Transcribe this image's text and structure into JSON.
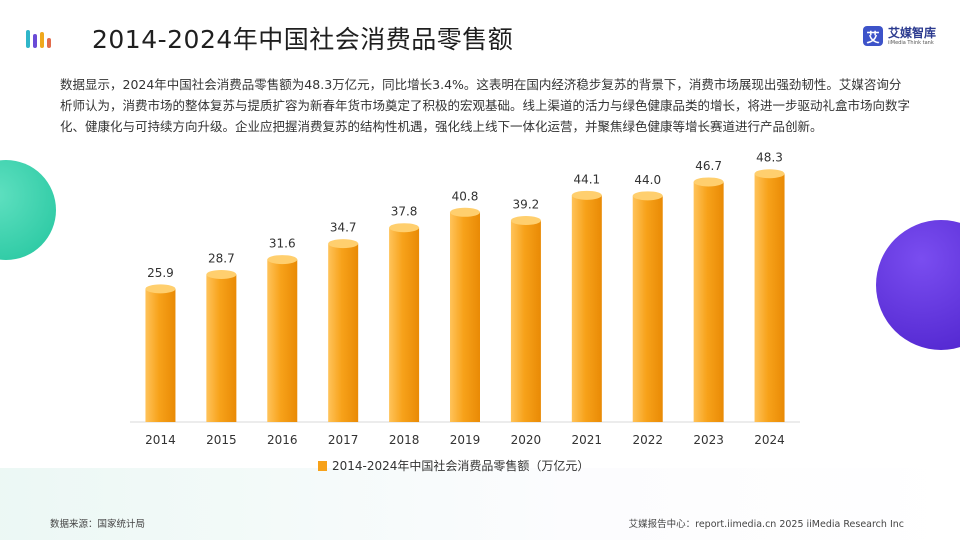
{
  "header": {
    "title": "2014-2024年中国社会消费品零售额",
    "brand_mark": "艾",
    "brand_name": "艾媒智库",
    "brand_sub": "iiMedia Think tank"
  },
  "description": "数据显示，2024年中国社会消费品零售额为48.3万亿元，同比增长3.4%。这表明在国内经济稳步复苏的背景下，消费市场展现出强劲韧性。艾媒咨询分析师认为，消费市场的整体复苏与提质扩容为新春年货市场奠定了积极的宏观基础。线上渠道的活力与绿色健康品类的增长，将进一步驱动礼盒市场向数字化、健康化与可持续方向升级。企业应把握消费复苏的结构性机遇，强化线上线下一体化运营，并聚焦绿色健康等增长赛道进行产品创新。",
  "footer": {
    "source": "数据来源：国家统计局",
    "credit": "艾媒报告中心：report.iimedia.cn  2025 iiMedia Research Inc"
  },
  "colors": {
    "bar_light": "#ffc35a",
    "bar_mid": "#f7a21a",
    "bar_dark": "#e98a05",
    "bar_top": "#ffcf6e",
    "accent_green": "#22c59e",
    "accent_purple": "#4a1fc9",
    "brand_blue": "#3d53c9"
  },
  "chart_data": {
    "type": "bar",
    "categories": [
      "2014",
      "2015",
      "2016",
      "2017",
      "2018",
      "2019",
      "2020",
      "2021",
      "2022",
      "2023",
      "2024"
    ],
    "series": [
      {
        "name": "2014-2024年中国社会消费品零售额（万亿元）",
        "values": [
          25.9,
          28.7,
          31.6,
          34.7,
          37.8,
          40.8,
          39.2,
          44.1,
          44.0,
          46.7,
          48.3
        ]
      }
    ],
    "value_labels": [
      "25.9",
      "28.7",
      "31.6",
      "34.7",
      "37.8",
      "40.8",
      "39.2",
      "44.1",
      "44.0",
      "46.7",
      "48.3"
    ],
    "legend_position": "bottom-center",
    "grid": false,
    "ylim": [
      0,
      50
    ]
  }
}
